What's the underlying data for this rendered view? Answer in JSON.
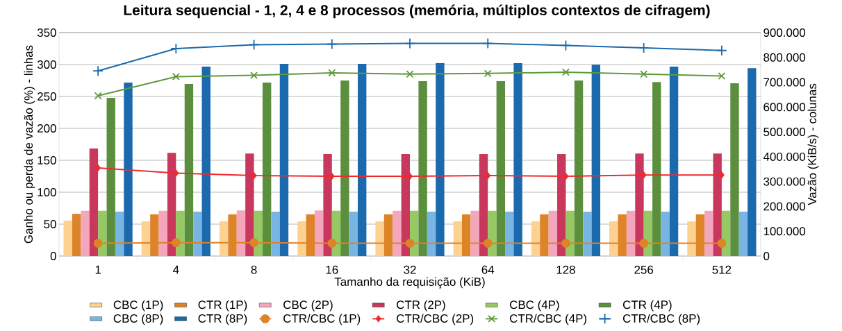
{
  "chart_data": {
    "type": "bar",
    "title": "Leitura sequencial - 1, 2, 4 e 8 processos (memória, múltiplos contextos de cifragem)",
    "xlabel": "Tamanho da requisição (KiB)",
    "ylabel": "Ganho ou perda de vazão (%) - linhas",
    "y2label": "Vazão (KiB/s) - colunas",
    "categories": [
      "1",
      "4",
      "8",
      "16",
      "32",
      "64",
      "128",
      "256",
      "512"
    ],
    "ylim": [
      0,
      350
    ],
    "yticks": [
      0,
      50,
      100,
      150,
      200,
      250,
      300,
      350
    ],
    "y2lim": [
      0,
      900000
    ],
    "y2ticks": [
      {
        "value": 0,
        "label": "0"
      },
      {
        "value": 100000,
        "label": "100.000"
      },
      {
        "value": 200000,
        "label": "200.000"
      },
      {
        "value": 300000,
        "label": "300.000"
      },
      {
        "value": 400000,
        "label": "400.000"
      },
      {
        "value": 500000,
        "label": "500.000"
      },
      {
        "value": 600000,
        "label": "600.000"
      },
      {
        "value": 700000,
        "label": "700.000"
      },
      {
        "value": 800000,
        "label": "800.000"
      },
      {
        "value": 900000,
        "label": "900.000"
      }
    ],
    "grid": "y",
    "legend": "bottom",
    "series": [
      {
        "name": "CBC (1P)",
        "axis": "y2",
        "color": "#fdd18f",
        "values": [
          143000,
          140000,
          140000,
          140000,
          140000,
          140000,
          140000,
          140000,
          140000
        ]
      },
      {
        "name": "CTR (1P)",
        "axis": "y2",
        "color": "#dd8428",
        "values": [
          170000,
          168000,
          168000,
          168000,
          168000,
          168000,
          168000,
          168000,
          168000
        ]
      },
      {
        "name": "CBC (2P)",
        "axis": "y2",
        "color": "#f4a6bc",
        "values": [
          182000,
          182000,
          184000,
          184000,
          182000,
          182000,
          182000,
          182000,
          182000
        ]
      },
      {
        "name": "CTR (2P)",
        "axis": "y2",
        "color": "#c9375c",
        "values": [
          433000,
          416000,
          413000,
          411000,
          411000,
          411000,
          411000,
          413000,
          413000
        ]
      },
      {
        "name": "CBC (4P)",
        "axis": "y2",
        "color": "#96c864",
        "values": [
          182000,
          182000,
          182000,
          182000,
          182000,
          182000,
          182000,
          182000,
          182000
        ]
      },
      {
        "name": "CTR (4P)",
        "axis": "y2",
        "color": "#5b8f3e",
        "values": [
          637000,
          693000,
          699000,
          707000,
          704000,
          704000,
          707000,
          701000,
          696000
        ]
      },
      {
        "name": "CBC (8P)",
        "axis": "y2",
        "color": "#78b5e2",
        "values": [
          179000,
          179000,
          179000,
          179000,
          179000,
          179000,
          179000,
          179000,
          179000
        ]
      },
      {
        "name": "CTR (8P)",
        "axis": "y2",
        "color": "#1a6aad",
        "values": [
          699000,
          763000,
          774000,
          774000,
          777000,
          777000,
          771000,
          763000,
          757000
        ]
      },
      {
        "name": "CTR/CBC (1P)",
        "type": "line",
        "axis": "y",
        "color": "#dd8428",
        "marker": "circle",
        "values": [
          20,
          21,
          21,
          20,
          20,
          20,
          20,
          20,
          20
        ]
      },
      {
        "name": "CTR/CBC (2P)",
        "type": "line",
        "axis": "y",
        "color": "#ee2a2e",
        "marker": "diamond",
        "values": [
          138,
          130,
          126,
          125,
          125,
          126,
          125,
          127,
          127
        ]
      },
      {
        "name": "CTR/CBC (4P)",
        "type": "line",
        "axis": "y",
        "color": "#5e9a3c",
        "marker": "cross",
        "values": [
          251,
          281,
          283,
          287,
          285,
          286,
          288,
          285,
          282
        ]
      },
      {
        "name": "CTR/CBC (8P)",
        "type": "line",
        "axis": "y",
        "color": "#1a6aad",
        "marker": "plus",
        "values": [
          290,
          325,
          331,
          332,
          333,
          333,
          330,
          326,
          322
        ]
      }
    ]
  }
}
